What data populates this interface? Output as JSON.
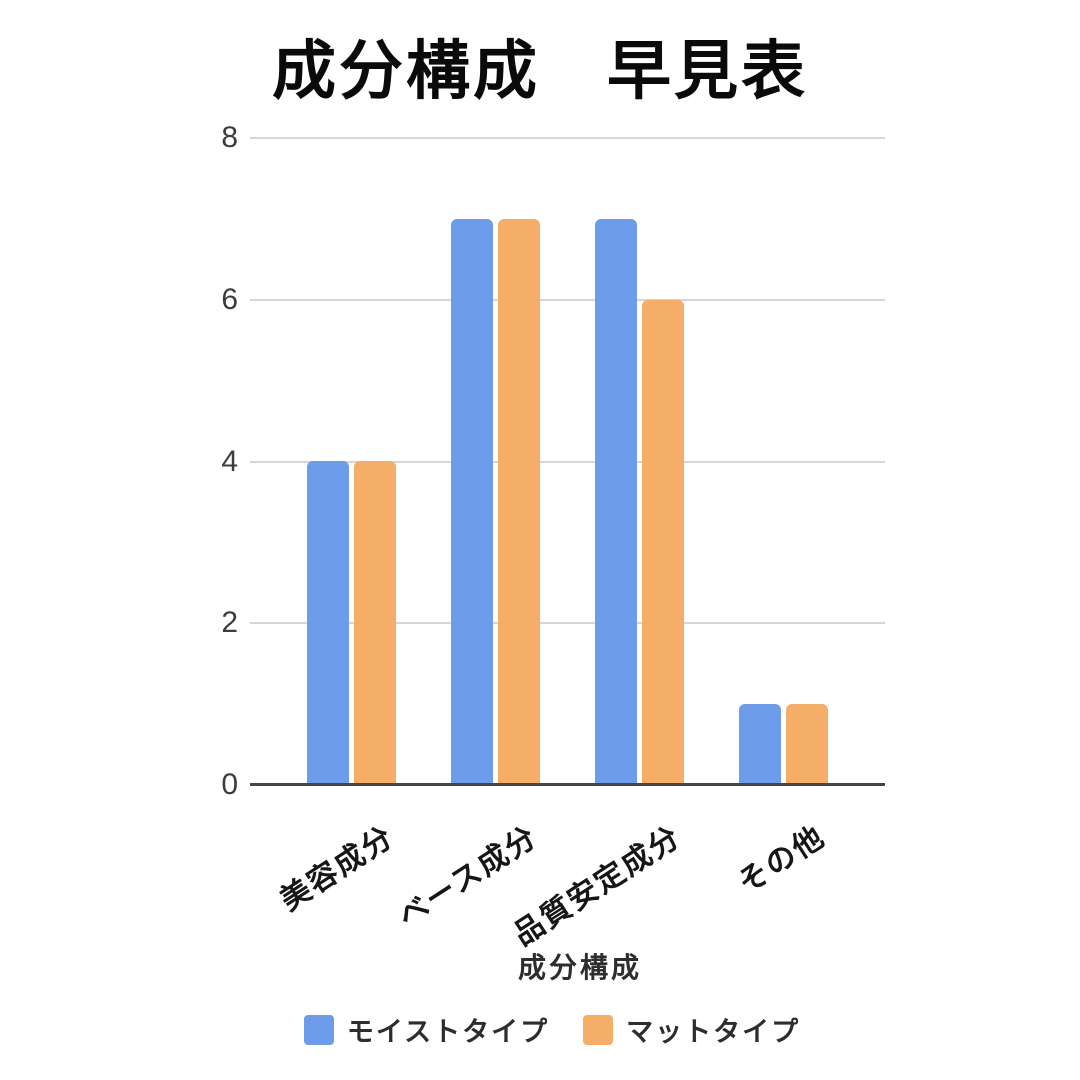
{
  "title": "成分構成　早見表",
  "chart_data": {
    "type": "bar",
    "title": "成分構成　早見表",
    "categories": [
      "美容成分",
      "ベース成分",
      "品質安定成分",
      "その他"
    ],
    "series": [
      {
        "name": "モイストタイプ",
        "color": "#6D9CEB",
        "values": [
          4,
          7,
          7,
          1
        ]
      },
      {
        "name": "マットタイプ",
        "color": "#F5AE68",
        "values": [
          4,
          7,
          6,
          1
        ]
      }
    ],
    "xlabel": "成分構成",
    "ylabel": "",
    "ylim": [
      0,
      8
    ],
    "yticks": [
      0,
      2,
      4,
      6,
      8
    ],
    "grid": true,
    "legend_position": "bottom",
    "colors": {
      "gridline": "#d6d6d6",
      "axis_line": "#454545",
      "tick_text": "#3c3c3c",
      "label_text": "#161616"
    }
  }
}
